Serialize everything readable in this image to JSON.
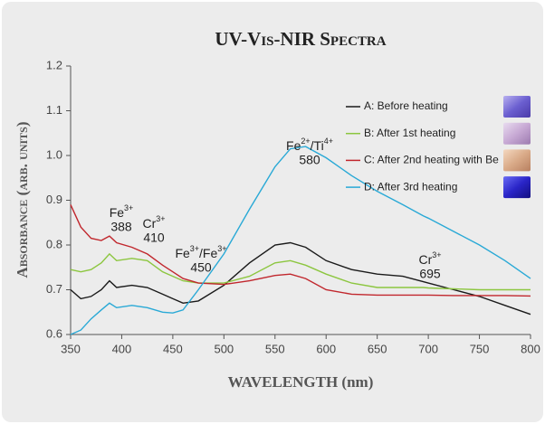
{
  "chart_data": {
    "type": "line",
    "title": "UV-Vis-NIR Spectra",
    "x_label": "WAVELENGTH (nm)",
    "y_label": "Absorbance (arb. units)",
    "x": [
      350,
      360,
      370,
      380,
      388,
      395,
      410,
      425,
      440,
      450,
      460,
      475,
      500,
      525,
      550,
      565,
      580,
      600,
      625,
      650,
      675,
      695,
      700,
      725,
      750,
      775,
      800
    ],
    "series": [
      {
        "name": "A: Before heating",
        "color": "#1a1a1a",
        "values": [
          0.7,
          0.68,
          0.685,
          0.7,
          0.72,
          0.705,
          0.71,
          0.705,
          0.69,
          0.68,
          0.67,
          0.675,
          0.71,
          0.76,
          0.8,
          0.805,
          0.795,
          0.765,
          0.745,
          0.735,
          0.73,
          0.718,
          0.715,
          0.7,
          0.685,
          0.665,
          0.645
        ]
      },
      {
        "name": "B: After 1st heating",
        "color": "#8cc63f",
        "values": [
          0.745,
          0.74,
          0.745,
          0.76,
          0.78,
          0.765,
          0.77,
          0.765,
          0.74,
          0.73,
          0.72,
          0.715,
          0.715,
          0.73,
          0.76,
          0.765,
          0.755,
          0.735,
          0.715,
          0.705,
          0.705,
          0.705,
          0.704,
          0.702,
          0.7,
          0.7,
          0.7
        ]
      },
      {
        "name": "C: After 2nd heating with Be",
        "color": "#c1272d",
        "values": [
          0.89,
          0.84,
          0.815,
          0.81,
          0.82,
          0.805,
          0.795,
          0.78,
          0.755,
          0.74,
          0.725,
          0.715,
          0.712,
          0.72,
          0.732,
          0.735,
          0.725,
          0.7,
          0.69,
          0.688,
          0.688,
          0.688,
          0.688,
          0.687,
          0.687,
          0.687,
          0.686
        ]
      },
      {
        "name": "D: After 3rd heating",
        "color": "#29a9d6",
        "values": [
          0.6,
          0.61,
          0.635,
          0.655,
          0.67,
          0.66,
          0.665,
          0.66,
          0.65,
          0.648,
          0.655,
          0.7,
          0.78,
          0.88,
          0.975,
          1.015,
          1.02,
          0.995,
          0.955,
          0.92,
          0.89,
          0.865,
          0.86,
          0.83,
          0.8,
          0.765,
          0.725
        ]
      }
    ],
    "xlim": [
      350,
      800
    ],
    "xticks": [
      350,
      400,
      450,
      500,
      550,
      600,
      650,
      700,
      750,
      800
    ],
    "ylim": [
      0.6,
      1.2
    ],
    "yticks": [
      0.6,
      0.7,
      0.8,
      0.9,
      {
        "value": 1,
        "label": "1.0"
      },
      1.1,
      1.2
    ],
    "grid": false,
    "legend": "upper right",
    "annotations": [
      {
        "ion": [
          "Fe",
          "3+"
        ],
        "wavelength": 388
      },
      {
        "ion": [
          "Cr",
          "3+"
        ],
        "wavelength": 410
      },
      {
        "ion": [
          "Fe",
          "3+",
          "/Fe",
          "3+"
        ],
        "wavelength": 450
      },
      {
        "ion": [
          "Fe",
          "2+",
          "/Ti",
          "4+"
        ],
        "wavelength": 580
      },
      {
        "ion": [
          "Cr",
          "3+"
        ],
        "wavelength": 695
      }
    ]
  }
}
